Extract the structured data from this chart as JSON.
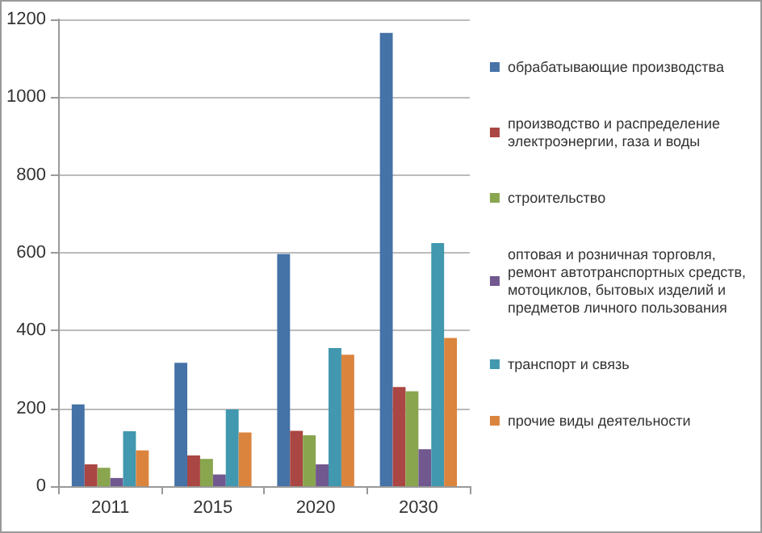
{
  "chart_data": {
    "type": "bar",
    "categories": [
      "2011",
      "2015",
      "2020",
      "2030"
    ],
    "series": [
      {
        "name": "обрабатывающие производства",
        "color": "#4572a7",
        "values": [
          210,
          317,
          597,
          1165
        ]
      },
      {
        "name": "производство и распределение электроэнергии, газа и воды",
        "color": "#aa4643",
        "values": [
          56,
          79,
          142,
          255
        ]
      },
      {
        "name": "строительство",
        "color": "#89a54e",
        "values": [
          47,
          70,
          131,
          244
        ]
      },
      {
        "name": "оптовая и розничная торговля, ремонт автотранспортных средств, мотоциклов, бытовых изделий и предметов личного пользования",
        "color": "#71588f",
        "values": [
          21,
          30,
          56,
          95
        ]
      },
      {
        "name": "транспорт и связь",
        "color": "#4198af",
        "values": [
          141,
          197,
          355,
          625
        ]
      },
      {
        "name": "прочие виды деятельности",
        "color": "#db843d",
        "values": [
          92,
          138,
          338,
          381
        ]
      }
    ],
    "ylim": [
      0,
      1200
    ],
    "yticks": [
      0,
      200,
      400,
      600,
      800,
      1000,
      1200
    ],
    "grid": "y",
    "legend": "right"
  }
}
